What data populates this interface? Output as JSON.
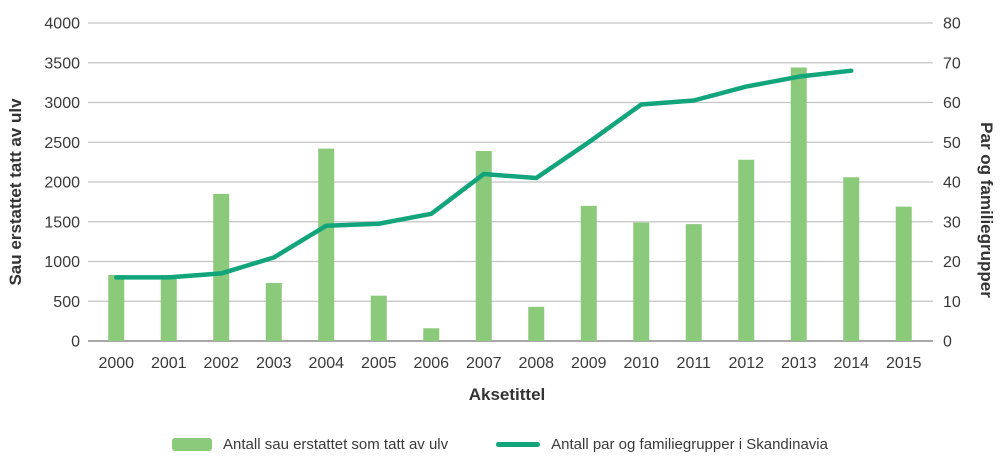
{
  "colors": {
    "bar": "#8bc97b",
    "line": "#12a57c",
    "gridline": "#c4c4c4",
    "axis_line": "#a8a8a8",
    "text": "#3a3a3a"
  },
  "chart_data": {
    "type": "bar",
    "subtype": "bar+line combo, dual axis",
    "categories": [
      "2000",
      "2001",
      "2002",
      "2003",
      "2004",
      "2005",
      "2006",
      "2007",
      "2008",
      "2009",
      "2010",
      "2011",
      "2012",
      "2013",
      "2014",
      "2015"
    ],
    "series": [
      {
        "name": "Antall sau erstattet som tatt av ulv",
        "type": "bar",
        "axis": "left",
        "values": [
          830,
          830,
          1850,
          730,
          2420,
          570,
          160,
          2390,
          430,
          1700,
          1490,
          1470,
          2280,
          3440,
          2060,
          1690
        ]
      },
      {
        "name": "Antall par og familiegrupper i Skandinavia",
        "type": "line",
        "axis": "right",
        "values": [
          16,
          16,
          17,
          21,
          29,
          29.5,
          32,
          42,
          41,
          50,
          59.5,
          60.5,
          64,
          66.5,
          68,
          null
        ]
      }
    ],
    "left_axis": {
      "title": "Sau erstattet tatt av ulv",
      "min": 0,
      "max": 4000,
      "step": 500,
      "ticks": [
        "0",
        "500",
        "1000",
        "1500",
        "2000",
        "2500",
        "3000",
        "3500",
        "4000"
      ]
    },
    "right_axis": {
      "title": "Par og familiegrupper",
      "min": 0,
      "max": 80,
      "step": 10,
      "ticks": [
        "0",
        "10",
        "20",
        "30",
        "40",
        "50",
        "60",
        "70",
        "80"
      ]
    },
    "x_axis": {
      "title": "Aksetittel"
    },
    "grid": true,
    "legend_position": "bottom"
  }
}
